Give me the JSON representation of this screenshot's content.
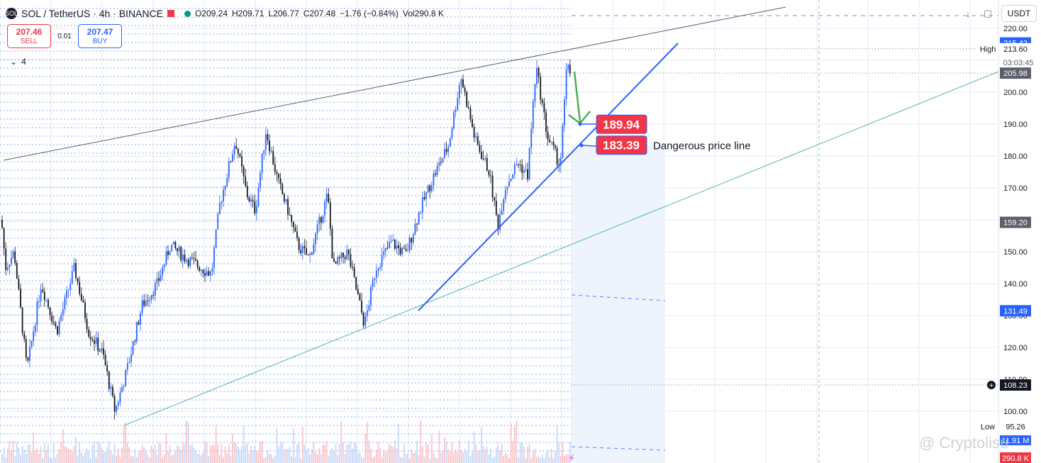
{
  "header": {
    "symbol": "SOL / TetherUS · 4h · BINANCE",
    "symbol_icon": "SOL",
    "open": "O209.24",
    "high": "H209.71",
    "low": "L206.77",
    "close": "C207.48",
    "change": "−1.76 (−0.84%)",
    "volume": "Vol290.8 K"
  },
  "trade": {
    "sell_price": "207.46",
    "sell_label": "SELL",
    "spread": "0.01",
    "buy_price": "207.47",
    "buy_label": "BUY"
  },
  "indicators_toggle": {
    "count": "4",
    "icon": "chevron-down-icon"
  },
  "currency_select": "USDT",
  "watermark": "@ Cryptolisu",
  "colors": {
    "up": "#2962ff",
    "down": "#131722",
    "trend": "#2962ff",
    "channel": "#26a69a",
    "label_red": "#f23645",
    "grid": "#e6e9f0",
    "arrow": "#4caf50"
  },
  "chart_data": {
    "type": "candlestick",
    "symbol": "SOL/USDT",
    "interval": "4h",
    "ylim": [
      95,
      222
    ],
    "y_ticks": [
      100,
      110,
      120,
      130,
      140,
      150,
      160,
      170,
      180,
      190,
      200,
      210,
      220
    ],
    "price_path": [
      [
        0,
        165
      ],
      [
        8,
        145
      ],
      [
        20,
        150
      ],
      [
        38,
        113
      ],
      [
        58,
        140
      ],
      [
        80,
        125
      ],
      [
        105,
        145
      ],
      [
        125,
        125
      ],
      [
        145,
        118
      ],
      [
        162,
        100
      ],
      [
        178,
        112
      ],
      [
        200,
        133
      ],
      [
        222,
        140
      ],
      [
        240,
        152
      ],
      [
        262,
        148
      ],
      [
        298,
        143
      ],
      [
        310,
        165
      ],
      [
        332,
        185
      ],
      [
        348,
        168
      ],
      [
        360,
        163
      ],
      [
        375,
        188
      ],
      [
        392,
        172
      ],
      [
        406,
        163
      ],
      [
        420,
        152
      ],
      [
        436,
        148
      ],
      [
        445,
        155
      ],
      [
        462,
        168
      ],
      [
        470,
        145
      ],
      [
        490,
        150
      ],
      [
        514,
        127
      ],
      [
        530,
        145
      ],
      [
        552,
        153
      ],
      [
        572,
        149
      ],
      [
        592,
        163
      ],
      [
        612,
        174
      ],
      [
        632,
        183
      ],
      [
        650,
        205
      ],
      [
        670,
        185
      ],
      [
        690,
        175
      ],
      [
        702,
        158
      ],
      [
        712,
        170
      ],
      [
        730,
        178
      ],
      [
        744,
        174
      ],
      [
        756,
        208
      ],
      [
        772,
        186
      ],
      [
        790,
        177
      ],
      [
        800,
        210
      ],
      [
        806,
        205
      ]
    ],
    "last_price": 205.98,
    "countdown": "03:03:45",
    "price_labels": [
      {
        "value": 220,
        "text": "220.00"
      },
      {
        "value": 215.42,
        "text": "215.42",
        "style": "blue"
      },
      {
        "value": 213.6,
        "text": "213.60",
        "caption": "High"
      },
      {
        "value": 205.98,
        "text": "205.98",
        "style": "dark"
      },
      {
        "value": 159.2,
        "text": "159.20",
        "style": "dark"
      },
      {
        "value": 131.49,
        "text": "131.49",
        "style": "blue"
      },
      {
        "value": 108.23,
        "text": "108.23",
        "style": "crosshair"
      },
      {
        "value": 95.26,
        "text": "95.26",
        "caption": "Low"
      }
    ],
    "volume_label": "290.8 K",
    "annotations": [
      {
        "text": "189.94",
        "value": 189.94,
        "style": "red"
      },
      {
        "text": "183.39",
        "value": 183.39,
        "style": "red"
      },
      {
        "text": "Dangerous price line",
        "value": 183.39
      }
    ],
    "partial_label": "11.91 M"
  }
}
